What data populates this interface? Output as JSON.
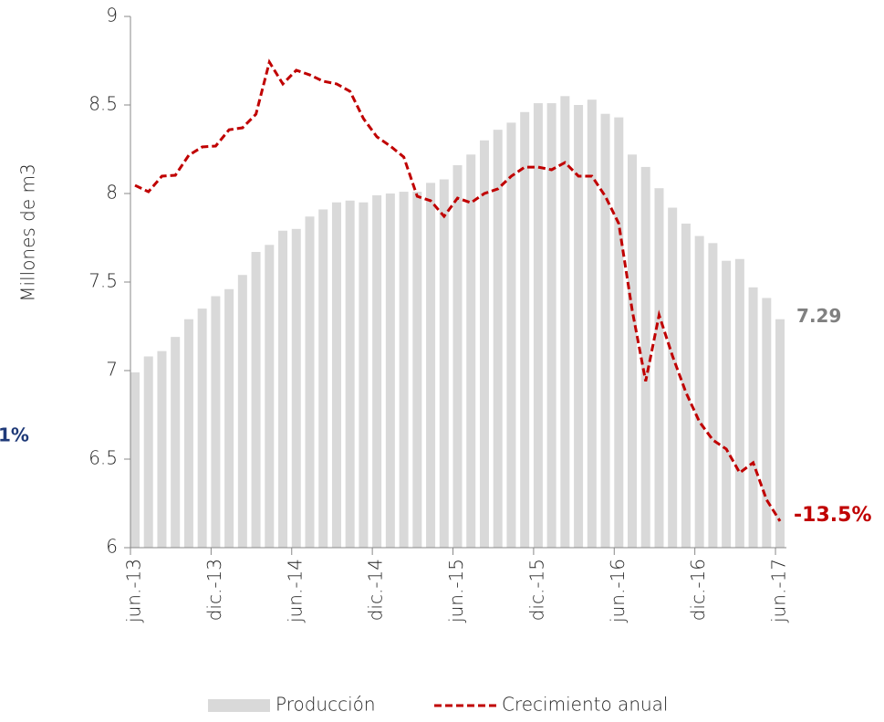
{
  "chart_data": {
    "type": "bar_line",
    "y_axis_label": "Millones de m3",
    "annotations": [
      "1%"
    ],
    "categories": [
      "jun.-13",
      null,
      null,
      null,
      null,
      null,
      "dic.-13",
      null,
      null,
      null,
      null,
      null,
      "jun.-14",
      null,
      null,
      null,
      null,
      null,
      "dic.-14",
      null,
      null,
      null,
      null,
      null,
      "jun.-15",
      null,
      null,
      null,
      null,
      null,
      "dic.-15",
      null,
      null,
      null,
      null,
      null,
      "jun.-16",
      null,
      null,
      null,
      null,
      null,
      "dic.-16",
      null,
      null,
      null,
      null,
      null,
      "jun.-17"
    ],
    "ylim": [
      6,
      9
    ],
    "yticks": [
      6,
      6.5,
      7,
      7.5,
      8,
      8.5,
      9
    ],
    "y2lim": [
      -15,
      15
    ],
    "series": [
      {
        "name": "Producción",
        "type": "bar",
        "color": "#d9d9d9",
        "values": [
          6.99,
          7.08,
          7.11,
          7.19,
          7.29,
          7.35,
          7.42,
          7.46,
          7.54,
          7.67,
          7.71,
          7.79,
          7.8,
          7.87,
          7.91,
          7.95,
          7.96,
          7.95,
          7.99,
          8.0,
          8.01,
          8.01,
          8.06,
          8.08,
          8.16,
          8.22,
          8.3,
          8.36,
          8.4,
          8.46,
          8.51,
          8.51,
          8.55,
          8.5,
          8.53,
          8.45,
          8.43,
          8.22,
          8.15,
          8.03,
          7.92,
          7.83,
          7.76,
          7.72,
          7.62,
          7.63,
          7.47,
          7.41,
          7.29
        ],
        "value_labels": [
          null,
          null,
          null,
          null,
          null,
          null,
          null,
          null,
          null,
          null,
          null,
          null,
          null,
          null,
          null,
          null,
          null,
          null,
          null,
          null,
          null,
          null,
          null,
          null,
          null,
          null,
          null,
          null,
          null,
          null,
          null,
          null,
          null,
          null,
          null,
          null,
          null,
          null,
          null,
          null,
          null,
          null,
          null,
          null,
          null,
          null,
          null,
          null,
          "7.29"
        ],
        "label_color": "#808080"
      },
      {
        "name": "Crecimiento anual",
        "type": "line",
        "axis": "y2",
        "color": "#c00000",
        "dashed": true,
        "values": [
          5.46,
          5.1,
          5.98,
          6.03,
          7.16,
          7.63,
          7.68,
          8.6,
          8.71,
          9.48,
          12.42,
          11.19,
          11.96,
          11.7,
          11.34,
          11.19,
          10.77,
          9.23,
          8.2,
          7.68,
          7.06,
          4.84,
          4.59,
          3.71,
          4.74,
          4.48,
          5.0,
          5.26,
          5.98,
          6.49,
          6.49,
          6.34,
          6.75,
          5.98,
          5.98,
          4.84,
          3.3,
          -1.6,
          -5.6,
          -1.86,
          -4.18,
          -6.24,
          -7.89,
          -8.92,
          -9.43,
          -10.77,
          -10.2,
          -12.3,
          -13.5
        ],
        "value_labels": [
          null,
          null,
          null,
          null,
          null,
          null,
          null,
          null,
          null,
          null,
          null,
          null,
          null,
          null,
          null,
          null,
          null,
          null,
          null,
          null,
          null,
          null,
          null,
          null,
          null,
          null,
          null,
          null,
          null,
          null,
          null,
          null,
          null,
          null,
          null,
          null,
          null,
          null,
          null,
          null,
          null,
          null,
          null,
          null,
          null,
          null,
          null,
          null,
          "-13.5%"
        ],
        "label_color": "#c00000"
      }
    ]
  }
}
